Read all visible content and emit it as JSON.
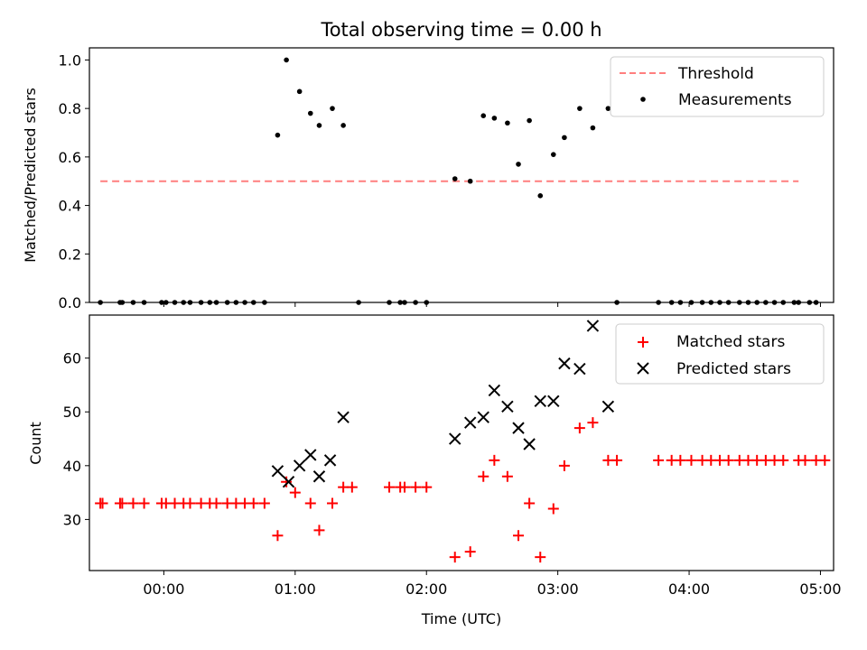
{
  "chart_data": [
    {
      "type": "scatter",
      "title": "Total observing time = 0.00 h",
      "xlabel": "",
      "ylabel": "Matched/Predicted stars",
      "xlim": [
        "-00:34",
        "05:06"
      ],
      "ylim": [
        0,
        1.05
      ],
      "yticks": [
        "0.0",
        "0.2",
        "0.4",
        "0.6",
        "0.8",
        "1.0"
      ],
      "legend_position": "top-right",
      "grid": false,
      "series": [
        {
          "name": "Threshold",
          "kind": "dashed-line",
          "color": "#ff7f7f",
          "points": [
            [
              "-00:29",
              0.5
            ],
            [
              "04:50",
              0.5
            ]
          ]
        },
        {
          "name": "Measurements",
          "kind": "dot",
          "color": "#000000",
          "points": [
            [
              "-00:29",
              0
            ],
            [
              "-00:20",
              0
            ],
            [
              "-00:19",
              0
            ],
            [
              "-00:14",
              0
            ],
            [
              "-00:09",
              0
            ],
            [
              "-00:01",
              0
            ],
            [
              "00:01",
              0
            ],
            [
              "00:05",
              0
            ],
            [
              "00:09",
              0
            ],
            [
              "00:12",
              0
            ],
            [
              "00:17",
              0
            ],
            [
              "00:21",
              0
            ],
            [
              "00:24",
              0
            ],
            [
              "00:29",
              0
            ],
            [
              "00:33",
              0
            ],
            [
              "00:37",
              0
            ],
            [
              "00:41",
              0
            ],
            [
              "00:46",
              0
            ],
            [
              "00:52",
              0.69
            ],
            [
              "00:56",
              1.0
            ],
            [
              "01:02",
              0.87
            ],
            [
              "01:07",
              0.78
            ],
            [
              "01:11",
              0.73
            ],
            [
              "01:17",
              0.8
            ],
            [
              "01:22",
              0.73
            ],
            [
              "01:29",
              0
            ],
            [
              "01:43",
              0
            ],
            [
              "01:48",
              0
            ],
            [
              "01:50",
              0
            ],
            [
              "01:55",
              0
            ],
            [
              "02:00",
              0
            ],
            [
              "02:13",
              0.51
            ],
            [
              "02:20",
              0.5
            ],
            [
              "02:26",
              0.77
            ],
            [
              "02:31",
              0.76
            ],
            [
              "02:37",
              0.74
            ],
            [
              "02:42",
              0.57
            ],
            [
              "02:47",
              0.75
            ],
            [
              "02:52",
              0.44
            ],
            [
              "02:58",
              0.61
            ],
            [
              "03:03",
              0.68
            ],
            [
              "03:10",
              0.8
            ],
            [
              "03:16",
              0.72
            ],
            [
              "03:23",
              0.8
            ],
            [
              "03:27",
              0
            ],
            [
              "03:46",
              0
            ],
            [
              "03:52",
              0
            ],
            [
              "03:56",
              0
            ],
            [
              "04:01",
              0
            ],
            [
              "04:06",
              0
            ],
            [
              "04:10",
              0
            ],
            [
              "04:14",
              0
            ],
            [
              "04:18",
              0
            ],
            [
              "04:23",
              0
            ],
            [
              "04:27",
              0
            ],
            [
              "04:31",
              0
            ],
            [
              "04:35",
              0
            ],
            [
              "04:39",
              0
            ],
            [
              "04:43",
              0
            ],
            [
              "04:48",
              0
            ],
            [
              "04:50",
              0
            ],
            [
              "04:55",
              0
            ],
            [
              "04:58",
              0
            ]
          ]
        }
      ]
    },
    {
      "type": "scatter",
      "title": "",
      "xlabel": "Time (UTC)",
      "ylabel": "Count",
      "xlim": [
        "-00:34",
        "05:06"
      ],
      "ylim": [
        20.5,
        68
      ],
      "xticks": [
        "00:00",
        "01:00",
        "02:00",
        "03:00",
        "04:00",
        "05:00"
      ],
      "yticks": [
        "30",
        "40",
        "50",
        "60"
      ],
      "legend_position": "top-right",
      "grid": false,
      "series": [
        {
          "name": "Matched stars",
          "kind": "plus",
          "color": "#ff0000",
          "points": [
            [
              "-00:29",
              33
            ],
            [
              "-00:28",
              33
            ],
            [
              "-00:20",
              33
            ],
            [
              "-00:19",
              33
            ],
            [
              "-00:14",
              33
            ],
            [
              "-00:09",
              33
            ],
            [
              "-00:01",
              33
            ],
            [
              "00:01",
              33
            ],
            [
              "00:05",
              33
            ],
            [
              "00:09",
              33
            ],
            [
              "00:12",
              33
            ],
            [
              "00:17",
              33
            ],
            [
              "00:21",
              33
            ],
            [
              "00:24",
              33
            ],
            [
              "00:29",
              33
            ],
            [
              "00:33",
              33
            ],
            [
              "00:37",
              33
            ],
            [
              "00:41",
              33
            ],
            [
              "00:46",
              33
            ],
            [
              "00:52",
              27
            ],
            [
              "00:56",
              37
            ],
            [
              "01:00",
              35
            ],
            [
              "01:07",
              33
            ],
            [
              "01:11",
              28
            ],
            [
              "01:17",
              33
            ],
            [
              "01:22",
              36
            ],
            [
              "01:26",
              36
            ],
            [
              "01:43",
              36
            ],
            [
              "01:48",
              36
            ],
            [
              "01:50",
              36
            ],
            [
              "01:55",
              36
            ],
            [
              "02:00",
              36
            ],
            [
              "02:13",
              23
            ],
            [
              "02:20",
              24
            ],
            [
              "02:26",
              38
            ],
            [
              "02:31",
              41
            ],
            [
              "02:37",
              38
            ],
            [
              "02:42",
              27
            ],
            [
              "02:47",
              33
            ],
            [
              "02:52",
              23
            ],
            [
              "02:58",
              32
            ],
            [
              "03:03",
              40
            ],
            [
              "03:10",
              47
            ],
            [
              "03:16",
              48
            ],
            [
              "03:23",
              41
            ],
            [
              "03:27",
              41
            ],
            [
              "03:46",
              41
            ],
            [
              "03:52",
              41
            ],
            [
              "03:56",
              41
            ],
            [
              "04:01",
              41
            ],
            [
              "04:06",
              41
            ],
            [
              "04:10",
              41
            ],
            [
              "04:14",
              41
            ],
            [
              "04:18",
              41
            ],
            [
              "04:23",
              41
            ],
            [
              "04:27",
              41
            ],
            [
              "04:31",
              41
            ],
            [
              "04:35",
              41
            ],
            [
              "04:39",
              41
            ],
            [
              "04:43",
              41
            ],
            [
              "04:50",
              41
            ],
            [
              "04:53",
              41
            ],
            [
              "04:58",
              41
            ],
            [
              "05:02",
              41
            ]
          ]
        },
        {
          "name": "Predicted stars",
          "kind": "x",
          "color": "#000000",
          "points": [
            [
              "00:52",
              39
            ],
            [
              "00:57",
              37
            ],
            [
              "01:02",
              40
            ],
            [
              "01:07",
              42
            ],
            [
              "01:11",
              38
            ],
            [
              "01:16",
              41
            ],
            [
              "01:22",
              49
            ],
            [
              "02:13",
              45
            ],
            [
              "02:20",
              48
            ],
            [
              "02:26",
              49
            ],
            [
              "02:31",
              54
            ],
            [
              "02:37",
              51
            ],
            [
              "02:42",
              47
            ],
            [
              "02:47",
              44
            ],
            [
              "02:52",
              52
            ],
            [
              "02:58",
              52
            ],
            [
              "03:03",
              59
            ],
            [
              "03:10",
              58
            ],
            [
              "03:16",
              66
            ],
            [
              "03:23",
              51
            ]
          ]
        }
      ]
    }
  ]
}
